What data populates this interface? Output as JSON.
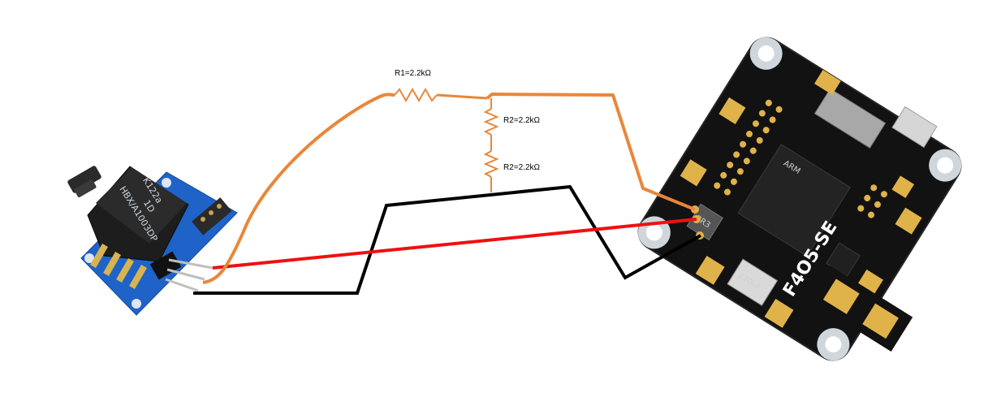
{
  "labels": {
    "r1": "R1=2.2kΩ",
    "r2a": "R2=2.2kΩ",
    "r2b": "R2=2.2kΩ"
  },
  "sensor": {
    "text_line1": "K122a",
    "text_line2": "1D",
    "text_line3": "HBX/A1003DP"
  },
  "board": {
    "title": "F4O5-SE",
    "chip_brand": "ARM",
    "cap_label": "220uF",
    "inductor_label": "3R3"
  },
  "colors": {
    "signal_wire": "#e8873a",
    "power_wire": "#ee1111",
    "ground_wire": "#000000",
    "resistor": "#e8873a",
    "sensor_pcb": "#1f63c9",
    "fc_pcb": "#121212",
    "pad_gold": "#e0b24a"
  }
}
